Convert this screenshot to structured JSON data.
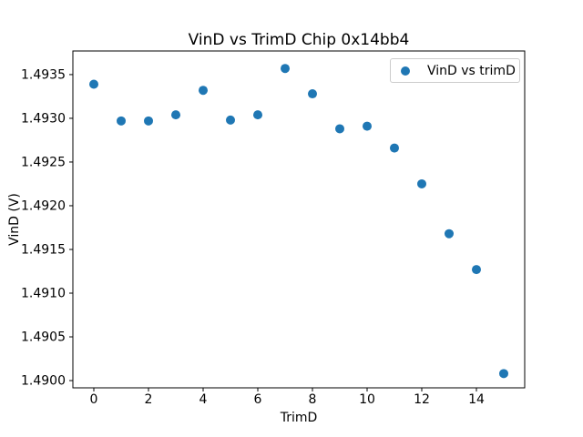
{
  "figure": {
    "background": "#ffffff"
  },
  "chart_data": {
    "type": "scatter",
    "title": "VinD vs TrimD Chip 0x14bb4",
    "xlabel": "TrimD",
    "ylabel": "VinD (V)",
    "legend": {
      "label": "VinD vs trimD",
      "position": "upper right"
    },
    "marker_color": "#1f77b4",
    "axes_color": "#000000",
    "grid": false,
    "x": [
      0,
      1,
      2,
      3,
      4,
      5,
      6,
      7,
      8,
      9,
      10,
      11,
      12,
      13,
      14,
      15
    ],
    "y": [
      1.49339,
      1.49297,
      1.49297,
      1.49304,
      1.49332,
      1.49298,
      1.49304,
      1.49357,
      1.49328,
      1.49288,
      1.49291,
      1.49266,
      1.49225,
      1.49168,
      1.49127,
      1.49008
    ],
    "xlim": [
      -0.767,
      15.767
    ],
    "ylim": [
      1.489917,
      1.49377
    ],
    "xticks": [
      0,
      2,
      4,
      6,
      8,
      10,
      12,
      14
    ],
    "yticks": [
      1.49,
      1.4905,
      1.491,
      1.4915,
      1.492,
      1.4925,
      1.493,
      1.4935
    ],
    "yticklabels": [
      "1.4900",
      "1.4905",
      "1.4910",
      "1.4915",
      "1.4920",
      "1.4925",
      "1.4930",
      "1.4935"
    ]
  }
}
